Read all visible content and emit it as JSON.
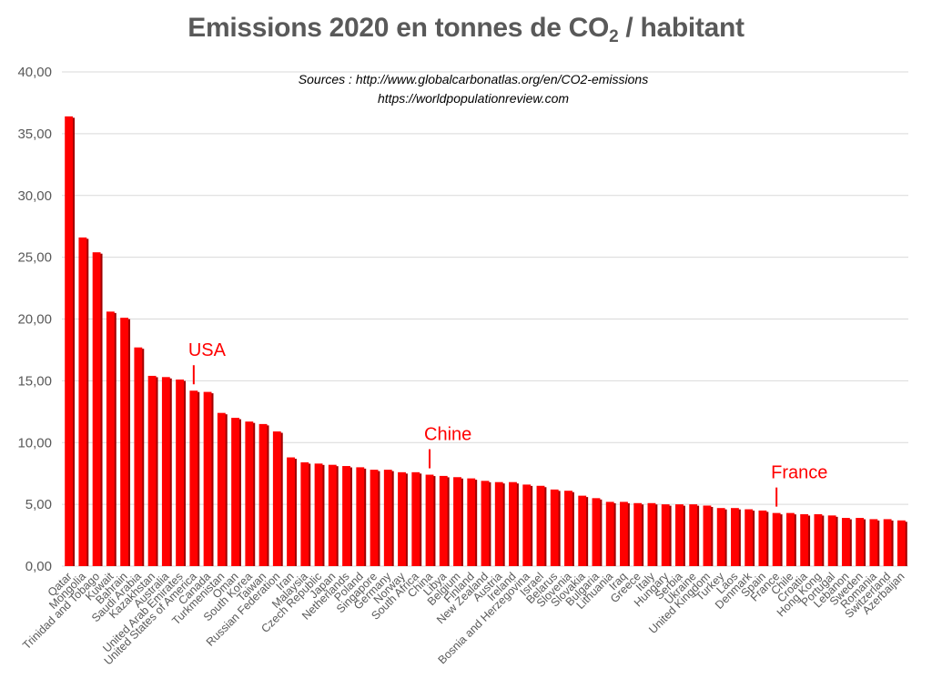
{
  "chart_data": {
    "type": "bar",
    "title": "Emissions 2020 en tonnes de CO2 / habitant",
    "title_parts": {
      "before": "Emissions 2020 en tonnes de CO",
      "subscript": "2",
      "after": " / habitant"
    },
    "subtitle_lines": [
      "Sources : http://www.globalcarbonatlas.org/en/CO2-emissions",
      "https://worldpopulationreview.com"
    ],
    "xlabel": "",
    "ylabel": "",
    "ylim": [
      0,
      40
    ],
    "yticks": [
      0,
      5,
      10,
      15,
      20,
      25,
      30,
      35,
      40
    ],
    "ytick_labels": [
      "0,00",
      "5,00",
      "10,00",
      "15,00",
      "20,00",
      "25,00",
      "30,00",
      "35,00",
      "40,00"
    ],
    "grid": true,
    "legend": "none",
    "bar_color": "#ff0000",
    "categories": [
      "Qatar",
      "Mongolia",
      "Trinidad and Tobago",
      "Kuwait",
      "Bahrain",
      "Saudi Arabia",
      "Kazakhstan",
      "Australia",
      "United Arab Emirates",
      "United States of America",
      "Canada",
      "Turkmenistan",
      "Oman",
      "South Korea",
      "Taiwan",
      "Russian Federation",
      "Iran",
      "Malaysia",
      "Czech Republic",
      "Japan",
      "Netherlands",
      "Poland",
      "Singapore",
      "Germany",
      "Norway",
      "South Africa",
      "China",
      "Libya",
      "Belgium",
      "Finland",
      "New Zealand",
      "Austria",
      "Ireland",
      "Bosnia and Herzegovina",
      "Israel",
      "Belarus",
      "Slovenia",
      "Slovakia",
      "Bulgaria",
      "Lithuania",
      "Iraq",
      "Greece",
      "Italy",
      "Hungary",
      "Serbia",
      "Ukraine",
      "United Kingdom",
      "Turkey",
      "Laos",
      "Denmark",
      "Spain",
      "France",
      "Chile",
      "Croatia",
      "Hong Kong",
      "Portugal",
      "Lebanon",
      "Sweden",
      "Romania",
      "Switzerland",
      "Azerbaijan"
    ],
    "values": [
      36.4,
      26.6,
      25.4,
      20.6,
      20.1,
      17.7,
      15.4,
      15.3,
      15.1,
      14.2,
      14.1,
      12.4,
      12.0,
      11.7,
      11.5,
      10.9,
      8.8,
      8.4,
      8.3,
      8.2,
      8.1,
      8.0,
      7.8,
      7.8,
      7.6,
      7.6,
      7.4,
      7.3,
      7.2,
      7.1,
      6.9,
      6.8,
      6.8,
      6.6,
      6.5,
      6.2,
      6.1,
      5.7,
      5.5,
      5.2,
      5.2,
      5.1,
      5.1,
      5.0,
      5.0,
      5.0,
      4.9,
      4.7,
      4.7,
      4.6,
      4.5,
      4.3,
      4.3,
      4.2,
      4.2,
      4.1,
      3.9,
      3.9,
      3.8,
      3.8,
      3.7
    ],
    "annotations": [
      {
        "label": "USA",
        "category": "United States of America"
      },
      {
        "label": "Chine",
        "category": "China"
      },
      {
        "label": "France",
        "category": "France"
      }
    ],
    "annotation_color": "#ff0000"
  }
}
